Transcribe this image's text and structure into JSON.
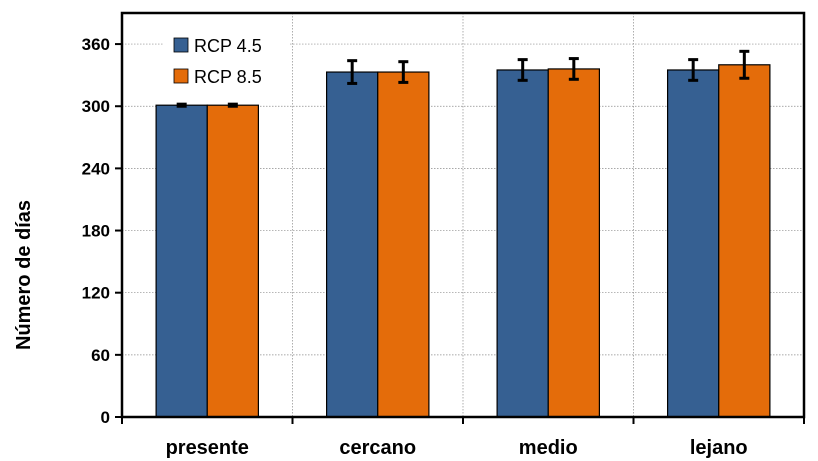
{
  "chart_data": {
    "type": "bar",
    "categories": [
      "presente",
      "cercano",
      "medio",
      "lejano"
    ],
    "series": [
      {
        "name": "RCP 4.5",
        "color": "#366092",
        "values": [
          301,
          333,
          335,
          335
        ],
        "error": [
          1,
          11,
          10,
          10
        ]
      },
      {
        "name": "RCP 8.5",
        "color": "#E46C0A",
        "values": [
          301,
          333,
          336,
          340
        ],
        "error": [
          1,
          10,
          10,
          13
        ]
      }
    ],
    "title": "",
    "xlabel": "",
    "ylabel": "Número de días",
    "ylim": [
      0,
      390
    ],
    "yticks": [
      0,
      60,
      120,
      180,
      240,
      300,
      360
    ],
    "grid": true,
    "legend_position": "top-left"
  }
}
